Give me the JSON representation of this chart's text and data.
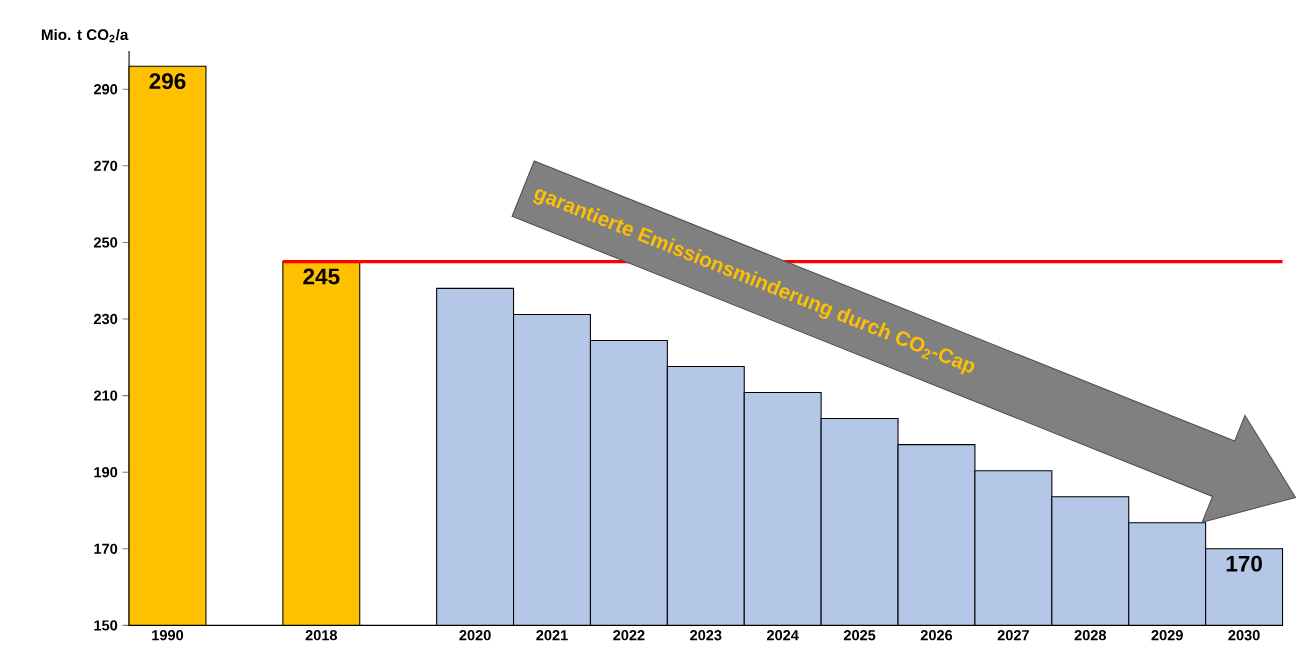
{
  "chart_data": {
    "type": "bar",
    "ylabel": "Mio. t CO$_{2}$/a",
    "categories": [
      "1990",
      null,
      "2018",
      null,
      "2020",
      "2021",
      "2022",
      "2023",
      "2024",
      "2025",
      "2026",
      "2027",
      "2028",
      "2029",
      "2030"
    ],
    "values": [
      296,
      null,
      245,
      null,
      238,
      231.2,
      224.4,
      217.6,
      210.8,
      204,
      197.2,
      190.4,
      183.6,
      176.8,
      170
    ],
    "colors": [
      "#ffc000",
      null,
      "#ffc000",
      null,
      "#b4c7e7",
      "#b4c7e7",
      "#b4c7e7",
      "#b4c7e7",
      "#b4c7e7",
      "#b4c7e7",
      "#b4c7e7",
      "#b4c7e7",
      "#b4c7e7",
      "#b4c7e7",
      "#b4c7e7"
    ],
    "value_labels": [
      "296",
      null,
      "245",
      null,
      null,
      null,
      null,
      null,
      null,
      null,
      null,
      null,
      null,
      null,
      "170"
    ],
    "ylim": [
      150,
      300
    ],
    "yticks": [
      150,
      170,
      190,
      210,
      230,
      250,
      270,
      290
    ],
    "ref_lines": [
      {
        "axis": "y",
        "value": 245,
        "color": "#ff0000"
      }
    ],
    "annotations": [
      "garantierte Emissionsminderung durch CO$_{2}$-Cap"
    ],
    "grid": false
  }
}
